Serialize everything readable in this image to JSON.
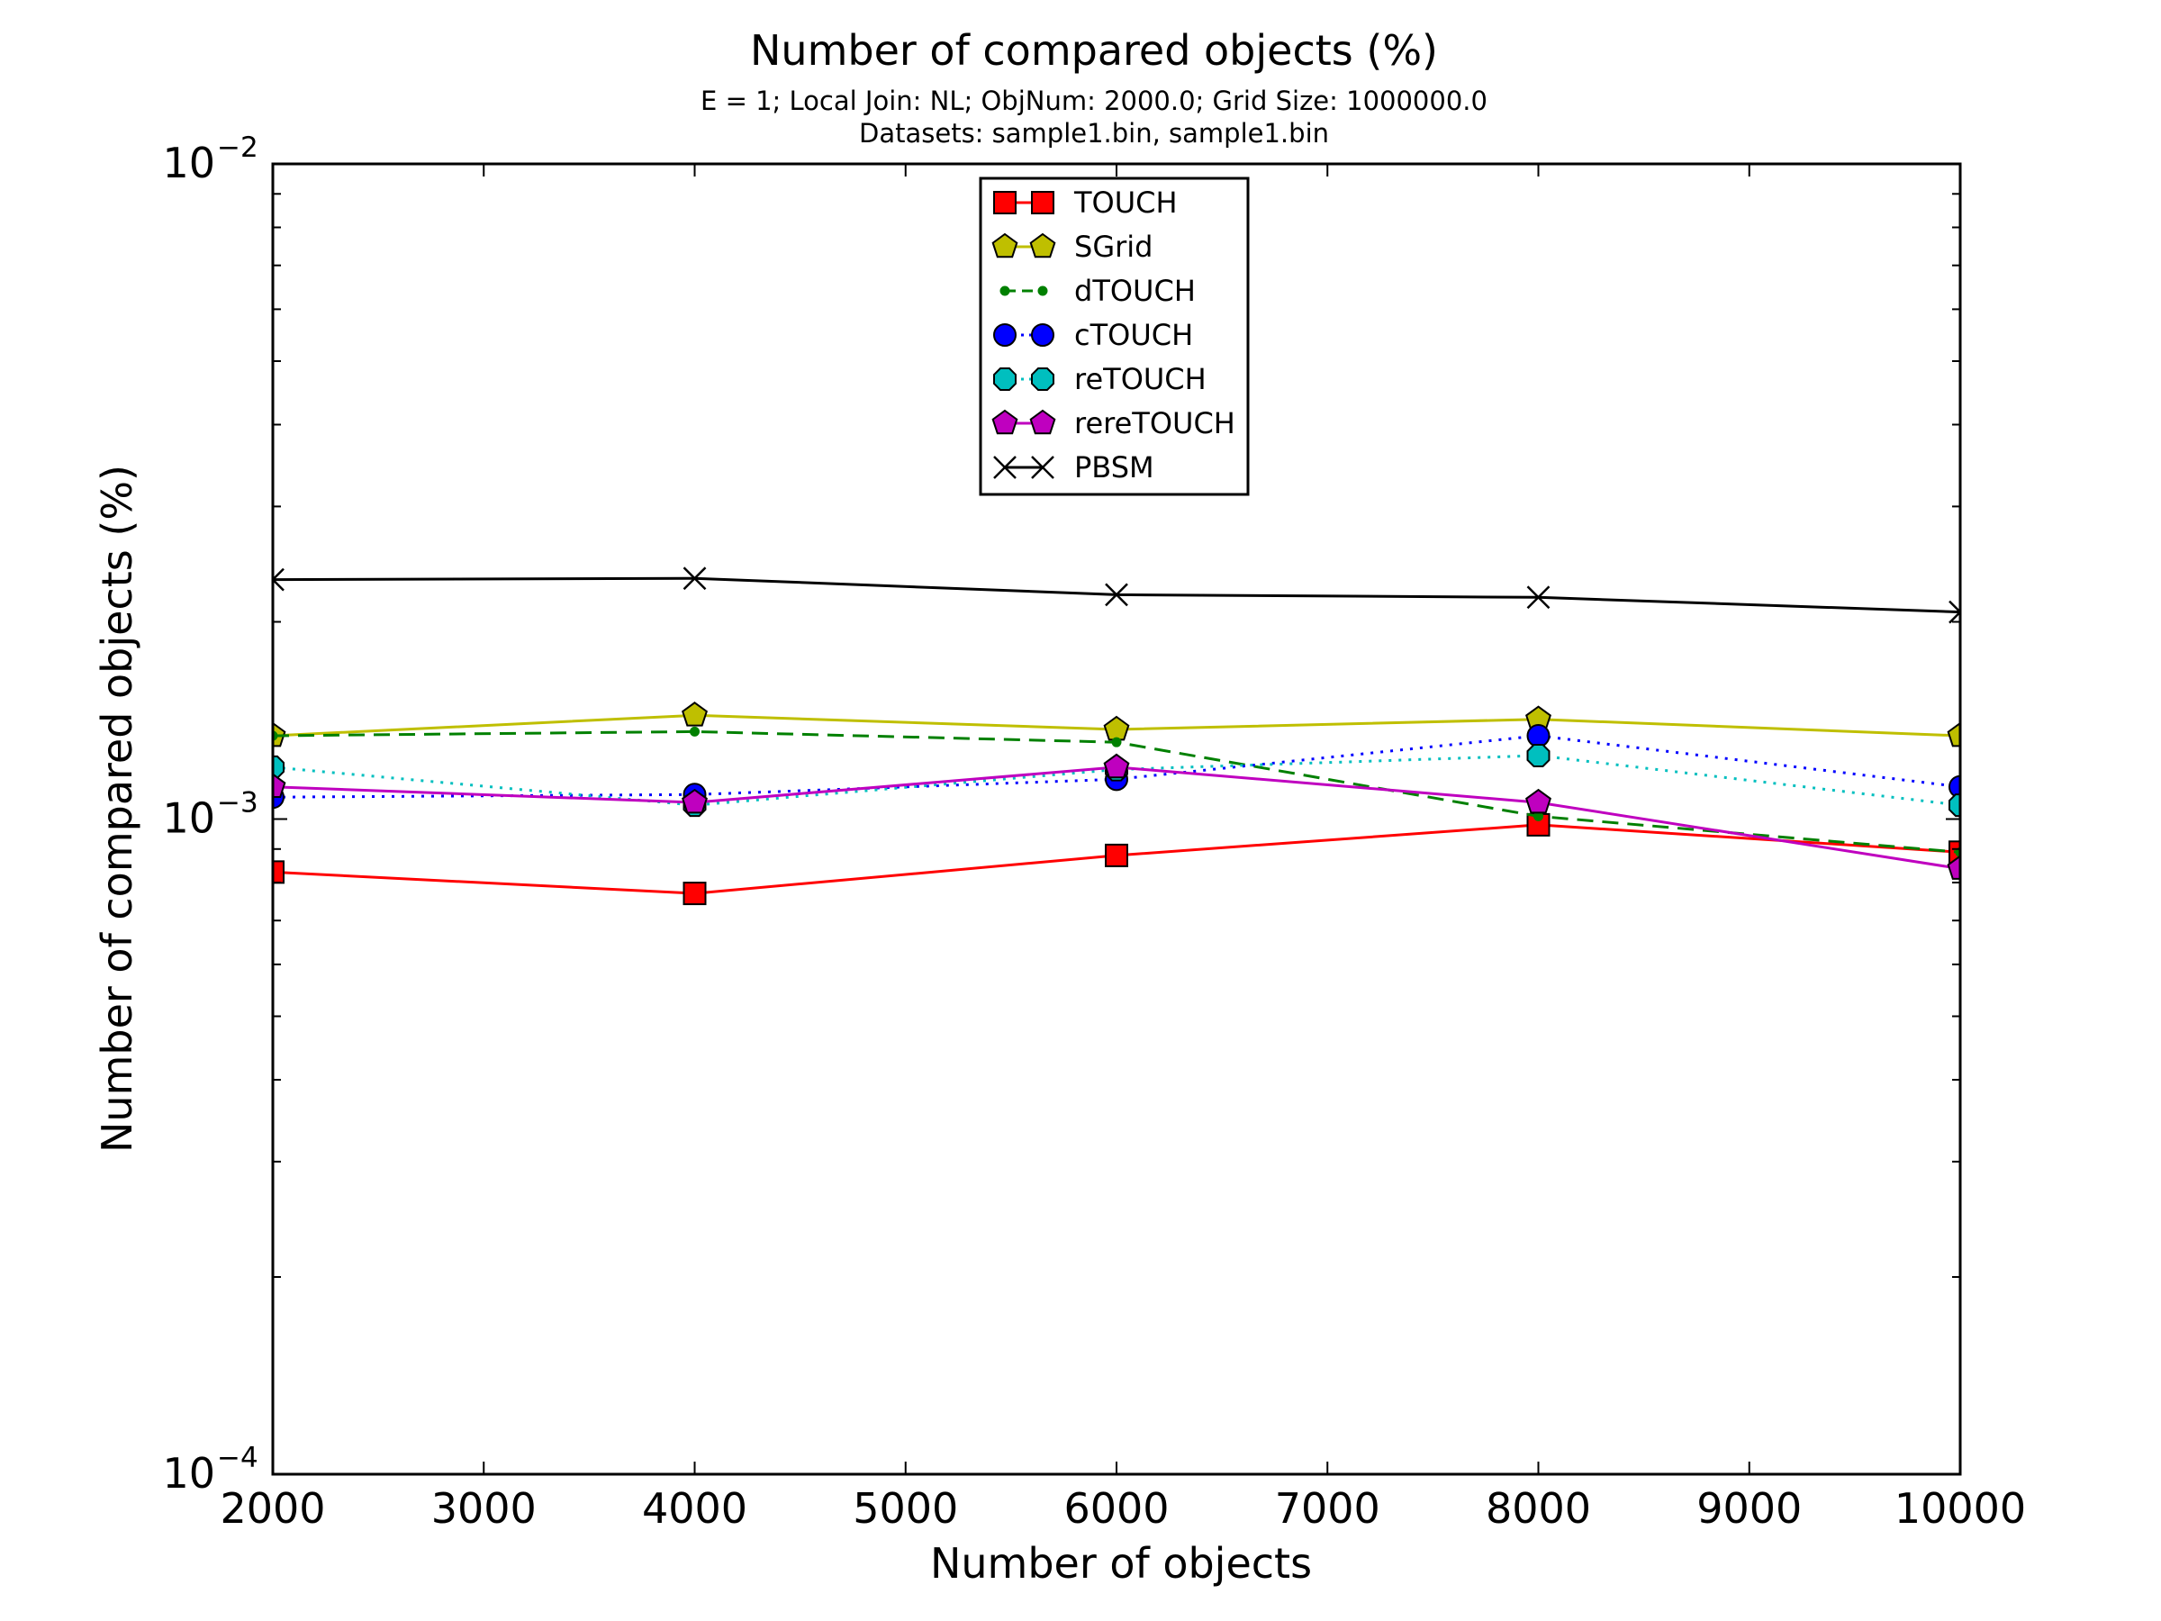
{
  "chart_data": {
    "type": "line",
    "title": "Number of compared objects (%)",
    "subtitle_lines": [
      "E = 1; Local Join: NL; ObjNum: 2000.0; Grid Size: 1000000.0",
      "Datasets: sample1.bin, sample1.bin"
    ],
    "xlabel": "Number of objects",
    "ylabel": "Number of compared objects (%)",
    "x": [
      2000,
      4000,
      6000,
      8000,
      10000
    ],
    "xlim": [
      2000,
      10000
    ],
    "xticks": [
      2000,
      3000,
      4000,
      5000,
      6000,
      7000,
      8000,
      9000,
      10000
    ],
    "xtick_labels": [
      "2000",
      "3000",
      "4000",
      "5000",
      "6000",
      "7000",
      "8000",
      "9000",
      "10000"
    ],
    "yscale": "log",
    "ylim": [
      0.0001,
      0.01
    ],
    "ytick_labels": [
      {
        "value": 0.01,
        "base": "10",
        "exp": "−2"
      },
      {
        "value": 0.001,
        "base": "10",
        "exp": "−3"
      },
      {
        "value": 0.0001,
        "base": "10",
        "exp": "−4"
      }
    ],
    "grid": false,
    "legend_position": "top-center",
    "series": [
      {
        "name": "TOUCH",
        "values": [
          0.00083,
          0.00077,
          0.00088,
          0.00098,
          0.00089
        ],
        "color": "#ff0000",
        "dash": "solid",
        "marker": "square"
      },
      {
        "name": "SGrid",
        "values": [
          0.00134,
          0.00144,
          0.00137,
          0.00142,
          0.00134
        ],
        "color": "#bfbf00",
        "dash": "solid",
        "marker": "pentagon"
      },
      {
        "name": "dTOUCH",
        "values": [
          0.00134,
          0.00136,
          0.00131,
          0.00101,
          0.00089
        ],
        "color": "#008000",
        "dash": "dashed",
        "marker": "point"
      },
      {
        "name": "cTOUCH",
        "values": [
          0.00108,
          0.00109,
          0.00115,
          0.00134,
          0.00112
        ],
        "color": "#0000ff",
        "dash": "dotted",
        "marker": "circle"
      },
      {
        "name": "reTOUCH",
        "values": [
          0.0012,
          0.00105,
          0.00119,
          0.00125,
          0.00105
        ],
        "color": "#00bfbf",
        "dash": "dotted",
        "marker": "octagon"
      },
      {
        "name": "rereTOUCH",
        "values": [
          0.00112,
          0.00106,
          0.0012,
          0.00106,
          0.00084
        ],
        "color": "#bf00bf",
        "dash": "solid",
        "marker": "pentagon"
      },
      {
        "name": "PBSM",
        "values": [
          0.00232,
          0.00233,
          0.0022,
          0.00218,
          0.00207
        ],
        "color": "#000000",
        "dash": "solid",
        "marker": "x"
      }
    ]
  }
}
